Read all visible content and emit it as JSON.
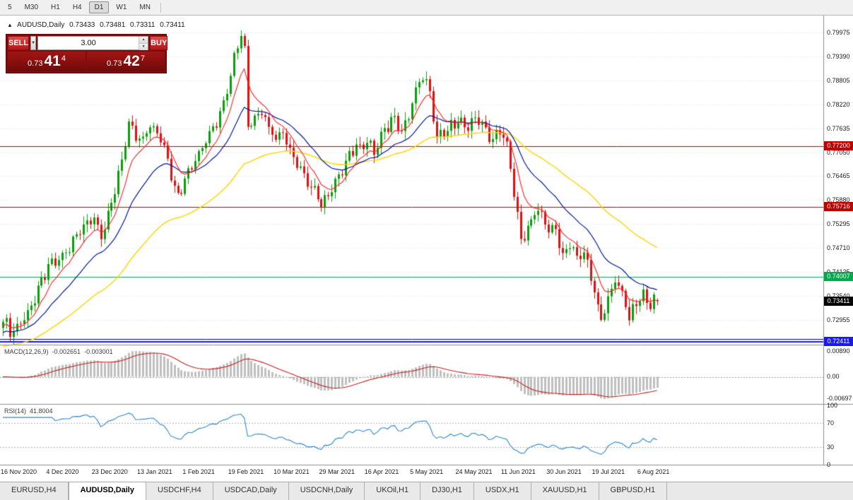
{
  "toolbar": {
    "timeframes": [
      {
        "label": "5",
        "active": false
      },
      {
        "label": "M30",
        "active": false
      },
      {
        "label": "H1",
        "active": false
      },
      {
        "label": "H4",
        "active": false
      },
      {
        "label": "D1",
        "active": true
      },
      {
        "label": "W1",
        "active": false
      },
      {
        "label": "MN",
        "active": false
      }
    ]
  },
  "chart": {
    "symbol_line": {
      "symbol": "AUDUSD,Daily",
      "open": "0.73433",
      "high": "0.73481",
      "low": "0.73311",
      "close": "0.73411"
    },
    "trade_panel": {
      "sell_label": "SELL",
      "buy_label": "BUY",
      "volume": "3.00",
      "sell_price_small": "0.73",
      "sell_price_big": "41",
      "sell_price_sup": "4",
      "buy_price_small": "0.73",
      "buy_price_big": "42",
      "buy_price_sup": "7"
    },
    "price_axis": {
      "ticks": [
        "0.79975",
        "0.79390",
        "0.78805",
        "0.78220",
        "0.77635",
        "0.77050",
        "0.76465",
        "0.75880",
        "0.75295",
        "0.74710",
        "0.74125",
        "0.73540",
        "0.72955"
      ]
    },
    "levels": [
      {
        "price": 0.772,
        "label": "0.77200",
        "color": "#c00000",
        "width": 1
      },
      {
        "price": 0.75716,
        "label": "0.75716",
        "color": "#c00000",
        "width": 1
      },
      {
        "price": 0.74007,
        "label": "0.74007",
        "color": "#00a94f",
        "width": 1
      },
      {
        "price": 0.7249,
        "label": "",
        "color": "#000080",
        "width": 1
      },
      {
        "price": 0.72411,
        "label": "0.72411",
        "color": "#1a1aee",
        "width": 2
      }
    ],
    "current_price": {
      "label": "0.73411",
      "price": 0.73411,
      "bg": "#000000"
    },
    "date_axis": [
      "16 Nov 2020",
      "4 Dec 2020",
      "23 Dec 2020",
      "13 Jan 2021",
      "1 Feb 2021",
      "19 Feb 2021",
      "10 Mar 2021",
      "29 Mar 2021",
      "16 Apr 2021",
      "5 May 2021",
      "24 May 2021",
      "11 Jun 2021",
      "30 Jun 2021",
      "19 Jul 2021",
      "6 Aug 2021"
    ]
  },
  "macd_panel": {
    "label": "MACD(12,26,9)",
    "value_main": "-0.002651",
    "value_signal": "-0.003001",
    "ticks": [
      "0.00890",
      "0.00",
      "-0.00697"
    ]
  },
  "rsi_panel": {
    "label": "RSI(14)",
    "value": "41.8004",
    "ticks": [
      "100",
      "70",
      "30",
      "0"
    ],
    "levels": [
      70,
      30
    ]
  },
  "tabs": [
    {
      "label": "EURUSD,H4",
      "active": false
    },
    {
      "label": "AUDUSD,Daily",
      "active": true
    },
    {
      "label": "USDCHF,H4",
      "active": false
    },
    {
      "label": "USDCAD,Daily",
      "active": false
    },
    {
      "label": "USDCNH,Daily",
      "active": false
    },
    {
      "label": "UKOil,H1",
      "active": false
    },
    {
      "label": "DJ30,H1",
      "active": false
    },
    {
      "label": "USDX,H1",
      "active": false
    },
    {
      "label": "XAUUSD,H1",
      "active": false
    },
    {
      "label": "GBPUSD,H1",
      "active": false
    }
  ],
  "chart_data": {
    "type": "candlestick",
    "count": 188,
    "price_range": [
      0.7235,
      0.8039
    ],
    "last_candle": {
      "open": 0.73433,
      "high": 0.73481,
      "low": 0.73311,
      "close": 0.73411
    },
    "ma_periods": {
      "red": 8,
      "navy": 21,
      "yellow": 55
    },
    "ma_seeds": {
      "red": 0.7278,
      "navy": 0.7262,
      "yellow": 0.7228
    },
    "anchors": [
      [
        0,
        0.729
      ],
      [
        2,
        0.7262
      ],
      [
        4,
        0.728
      ],
      [
        6,
        0.731
      ],
      [
        9,
        0.7345
      ],
      [
        11,
        0.738
      ],
      [
        13,
        0.742
      ],
      [
        16,
        0.7448
      ],
      [
        19,
        0.7476
      ],
      [
        22,
        0.7505
      ],
      [
        24,
        0.753
      ],
      [
        26,
        0.755
      ],
      [
        28,
        0.7512
      ],
      [
        30,
        0.7548
      ],
      [
        32,
        0.761
      ],
      [
        34,
        0.768
      ],
      [
        36,
        0.7768
      ],
      [
        38,
        0.775
      ],
      [
        40,
        0.7738
      ],
      [
        42,
        0.7772
      ],
      [
        44,
        0.7742
      ],
      [
        46,
        0.7712
      ],
      [
        48,
        0.7655
      ],
      [
        50,
        0.7608
      ],
      [
        52,
        0.7642
      ],
      [
        54,
        0.7665
      ],
      [
        56,
        0.769
      ],
      [
        58,
        0.7738
      ],
      [
        60,
        0.7775
      ],
      [
        62,
        0.7805
      ],
      [
        64,
        0.7862
      ],
      [
        66,
        0.7928
      ],
      [
        68,
        0.7992
      ],
      [
        69,
        0.7955
      ],
      [
        70,
        0.7772
      ],
      [
        72,
        0.78
      ],
      [
        74,
        0.7815
      ],
      [
        76,
        0.7758
      ],
      [
        78,
        0.7735
      ],
      [
        80,
        0.7752
      ],
      [
        82,
        0.7718
      ],
      [
        84,
        0.769
      ],
      [
        86,
        0.7648
      ],
      [
        88,
        0.761
      ],
      [
        91,
        0.7578
      ],
      [
        93,
        0.7605
      ],
      [
        96,
        0.7648
      ],
      [
        99,
        0.7695
      ],
      [
        102,
        0.7718
      ],
      [
        104,
        0.7738
      ],
      [
        106,
        0.7712
      ],
      [
        108,
        0.7742
      ],
      [
        110,
        0.7762
      ],
      [
        112,
        0.7788
      ],
      [
        114,
        0.7758
      ],
      [
        116,
        0.7802
      ],
      [
        118,
        0.7858
      ],
      [
        120,
        0.7888
      ],
      [
        122,
        0.7838
      ],
      [
        124,
        0.7742
      ],
      [
        126,
        0.7762
      ],
      [
        128,
        0.7775
      ],
      [
        130,
        0.7782
      ],
      [
        132,
        0.7758
      ],
      [
        134,
        0.7772
      ],
      [
        136,
        0.779
      ],
      [
        138,
        0.7762
      ],
      [
        140,
        0.7742
      ],
      [
        142,
        0.7748
      ],
      [
        144,
        0.7718
      ],
      [
        146,
        0.7598
      ],
      [
        148,
        0.7495
      ],
      [
        150,
        0.7522
      ],
      [
        152,
        0.7568
      ],
      [
        154,
        0.7542
      ],
      [
        156,
        0.7502
      ],
      [
        158,
        0.7525
      ],
      [
        160,
        0.7452
      ],
      [
        162,
        0.7492
      ],
      [
        164,
        0.7445
      ],
      [
        166,
        0.745
      ],
      [
        168,
        0.7395
      ],
      [
        169,
        0.7368
      ],
      [
        171,
        0.7302
      ],
      [
        173,
        0.7345
      ],
      [
        175,
        0.7392
      ],
      [
        177,
        0.7352
      ],
      [
        179,
        0.7295
      ],
      [
        181,
        0.7342
      ],
      [
        183,
        0.7362
      ],
      [
        185,
        0.7338
      ],
      [
        187,
        0.73411
      ]
    ],
    "colors": {
      "up": "#0a9e0a",
      "down": "#e01010",
      "ma_red": "#ff2020",
      "ma_navy": "#001a9e",
      "ma_yellow": "#ffd400",
      "macd_hist": "#bfbfbf",
      "macd_signal": "#c62020",
      "rsi_line": "#2e86d0"
    }
  }
}
